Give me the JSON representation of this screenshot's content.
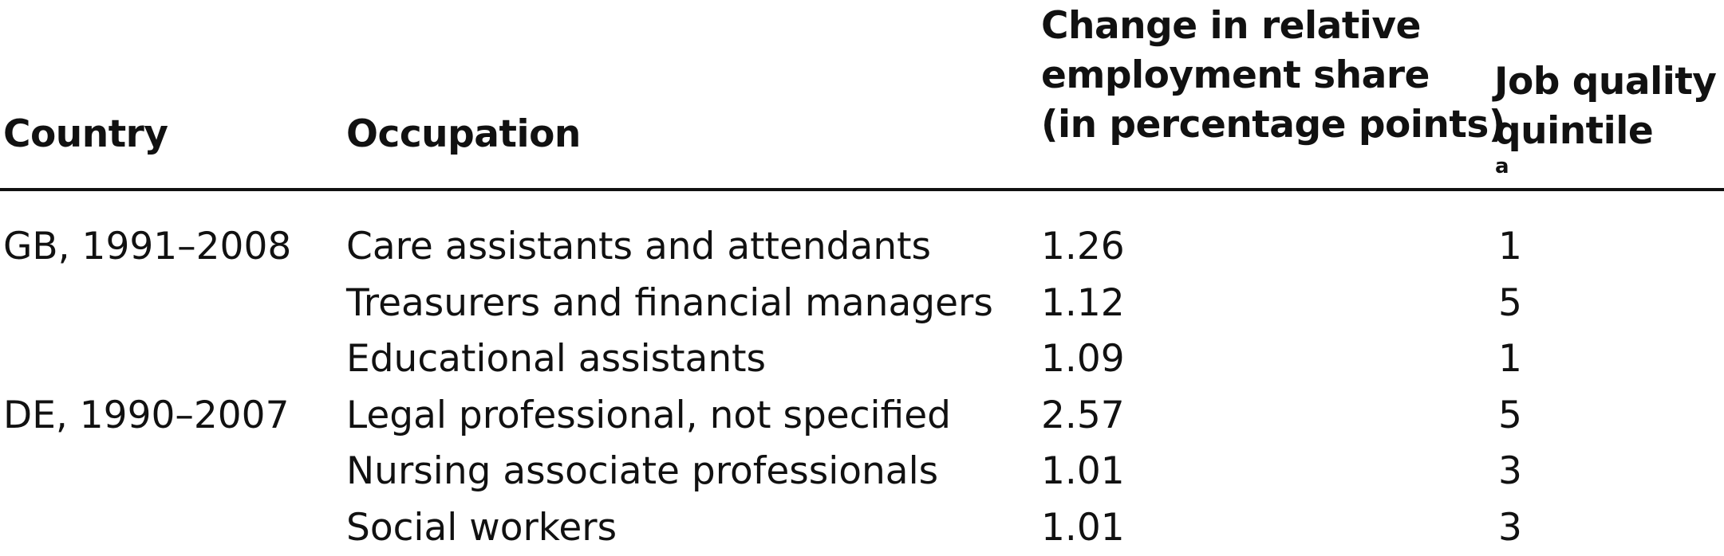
{
  "table": {
    "headers": {
      "country": "Country",
      "occupation": "Occupation",
      "change_line1": "Change in relative",
      "change_line2": "employment share",
      "change_line3": "(in percentage points)",
      "quintile_line1": "Job quality",
      "quintile_line2": "quintile",
      "quintile_footnote_mark": "a"
    },
    "rows": [
      {
        "country": "GB, 1991–2008",
        "occupation": "Care assistants and attendants",
        "change": "1.26",
        "quintile": "1"
      },
      {
        "country": "",
        "occupation": "Treasurers and financial managers",
        "change": "1.12",
        "quintile": "5"
      },
      {
        "country": "",
        "occupation": "Educational assistants",
        "change": "1.09",
        "quintile": "1"
      },
      {
        "country": "DE, 1990–2007",
        "occupation": "Legal professional, not specified",
        "change": "2.57",
        "quintile": "5"
      },
      {
        "country": "",
        "occupation": "Nursing associate professionals",
        "change": "1.01",
        "quintile": "3"
      },
      {
        "country": "",
        "occupation": "Social workers",
        "change": "1.01",
        "quintile": "3"
      }
    ]
  }
}
